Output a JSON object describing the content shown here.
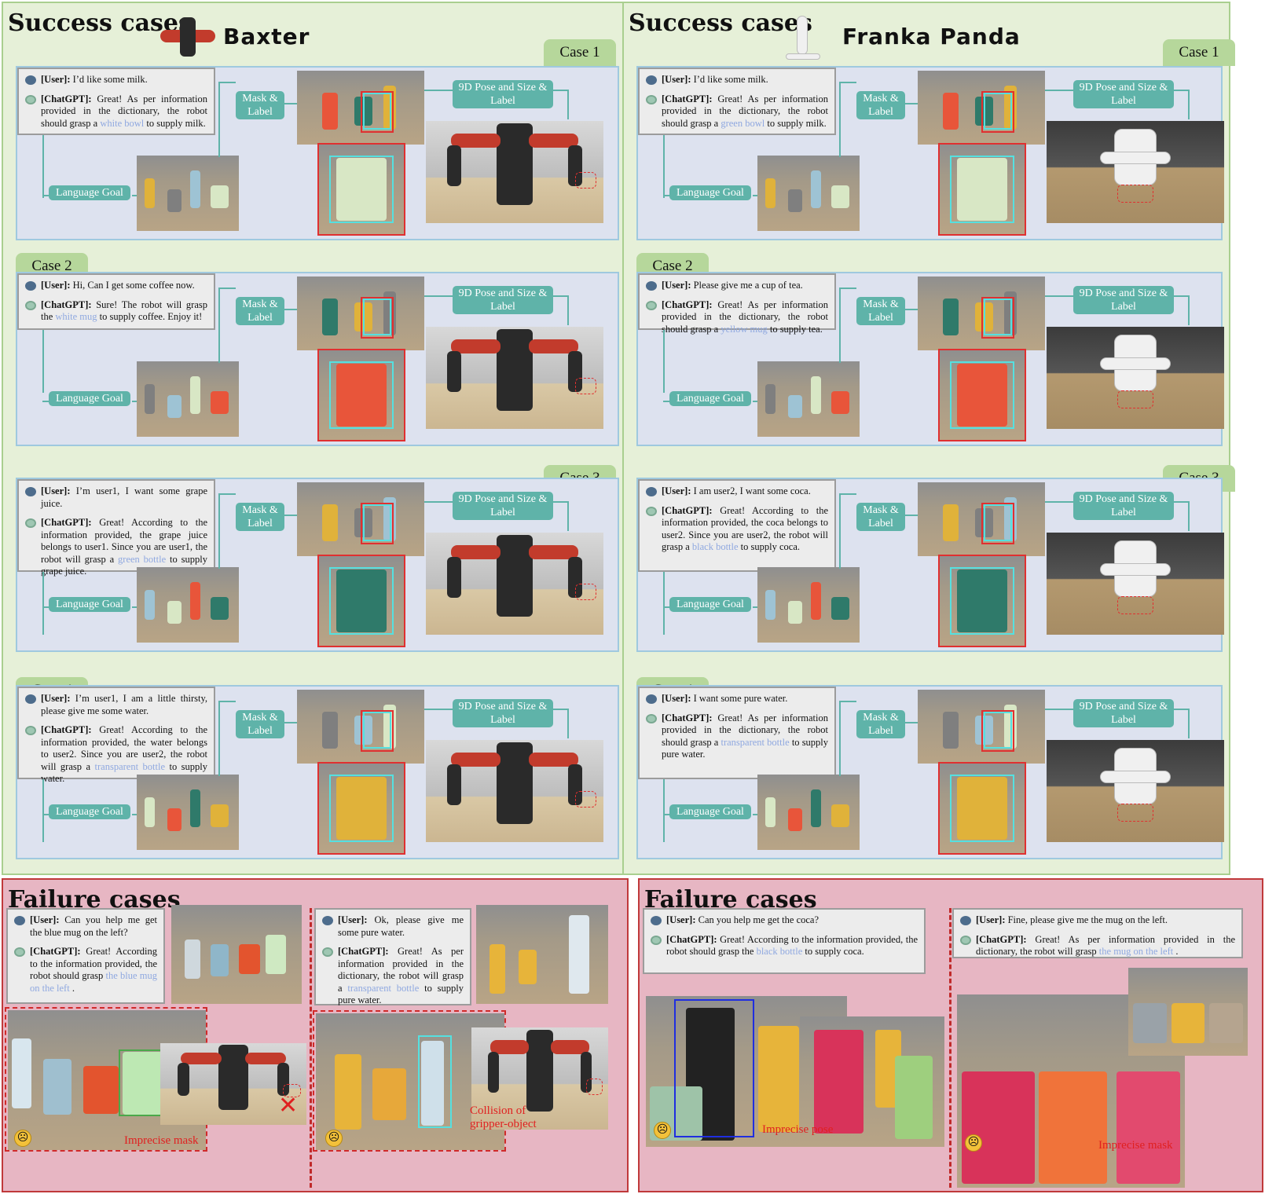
{
  "success_title": "Success cases",
  "failure_title": "Failure cases",
  "labels": {
    "mask_label": "Mask & Label",
    "pose_label": "9D Pose and Size & Label",
    "language_goal": "Language Goal"
  },
  "baxter": {
    "robot_name": "Baxter",
    "cases": [
      {
        "tag": "Case 1",
        "user_label": "[User]:",
        "user": "I’d like some milk.",
        "gpt_label": "[ChatGPT]:",
        "gpt_before": "Great! As per information provided in the dictionary, the robot should grasp a",
        "gpt_hl": "white bowl",
        "gpt_after": "to supply milk."
      },
      {
        "tag": "Case 2",
        "user_label": "[User]:",
        "user": "Hi, Can I get some coffee now.",
        "gpt_label": "[ChatGPT]:",
        "gpt_before": "Sure! The robot will grasp the",
        "gpt_hl": "white mug",
        "gpt_after": "to supply coffee. Enjoy it!"
      },
      {
        "tag": "Case 3",
        "user_label": "[User]:",
        "user": "I’m user1, I want some grape juice.",
        "gpt_label": "[ChatGPT]:",
        "gpt_before": "Great! According to the information provided, the grape juice belongs to user1. Since you are user1, the robot will grasp a",
        "gpt_hl": "green bottle",
        "gpt_after": "to supply grape juice."
      },
      {
        "tag": "Case 4",
        "user_label": "[User]:",
        "user": "I’m user1, I am a little thirsty, please give me some water.",
        "gpt_label": "[ChatGPT]:",
        "gpt_before": "Great! According to the information provided, the water belongs to user2. Since you are user2, the robot will grasp a",
        "gpt_hl": "transparent bottle",
        "gpt_after": "to supply water."
      }
    ],
    "failures": [
      {
        "user_label": "[User]:",
        "user": "Can you help me get the blue mug on the left?",
        "gpt_label": "[ChatGPT]:",
        "gpt_before": "Great! According to the information provided, the robot should grasp",
        "gpt_hl": "the blue mug on the left",
        "gpt_after": ".",
        "note": "Imprecise mask"
      },
      {
        "user_label": "[User]:",
        "user": "Ok, please give me some pure water.",
        "gpt_label": "[ChatGPT]:",
        "gpt_before": "Great! As per information provided in the dictionary, the robot will grasp a",
        "gpt_hl": "transparent bottle",
        "gpt_after": "to supply pure water.",
        "note": "Collision of gripper-object"
      }
    ]
  },
  "franka": {
    "robot_name": "Franka Panda",
    "cases": [
      {
        "tag": "Case 1",
        "user_label": "[User]:",
        "user": "I’d like some milk.",
        "gpt_label": "[ChatGPT]:",
        "gpt_before": "Great! As per information provided in the dictionary, the robot should grasp a",
        "gpt_hl": "green bowl",
        "gpt_after": "to supply milk."
      },
      {
        "tag": "Case 2",
        "user_label": "[User]:",
        "user": "Please give me a cup of tea.",
        "gpt_label": "[ChatGPT]:",
        "gpt_before": "Great! As per information provided in the dictionary, the robot should grasp a",
        "gpt_hl": "yellow mug",
        "gpt_after": "to supply tea."
      },
      {
        "tag": "Case 3",
        "user_label": "[User]:",
        "user": "I am user2, I want some coca.",
        "gpt_label": "[ChatGPT]:",
        "gpt_before": "Great! According to the information provided, the coca belongs to user2. Since you are user2, the robot will grasp a",
        "gpt_hl": "black bottle",
        "gpt_after": "to supply coca."
      },
      {
        "tag": "Case 4",
        "user_label": "[User]:",
        "user": "I want some pure water.",
        "gpt_label": "[ChatGPT]:",
        "gpt_before": "Great! As per information provided in the dictionary, the robot should grasp a",
        "gpt_hl": "transparent bottle",
        "gpt_after": "to supply pure water."
      }
    ],
    "failures": [
      {
        "user_label": "[User]:",
        "user": "Can you help me get the coca?",
        "gpt_label": "[ChatGPT]:",
        "gpt_before": "Great! According to the information provided, the robot should grasp the",
        "gpt_hl": "black bottle",
        "gpt_after": "to supply coca.",
        "note": "Imprecise pose"
      },
      {
        "user_label": "[User]:",
        "user": "Fine, please give me the mug on the left.",
        "gpt_label": "[ChatGPT]:",
        "gpt_before": "Great! As per information provided in the dictionary, the robot will grasp",
        "gpt_hl": "the mug on the left",
        "gpt_after": ".",
        "note": "Imprecise mask"
      }
    ]
  },
  "colors": {
    "success_bg": "#e6f0d8",
    "failure_bg": "#e7b6c3",
    "accent": "#5fb3a9",
    "highlight": "#8fa8e0",
    "error": "#e02020"
  }
}
